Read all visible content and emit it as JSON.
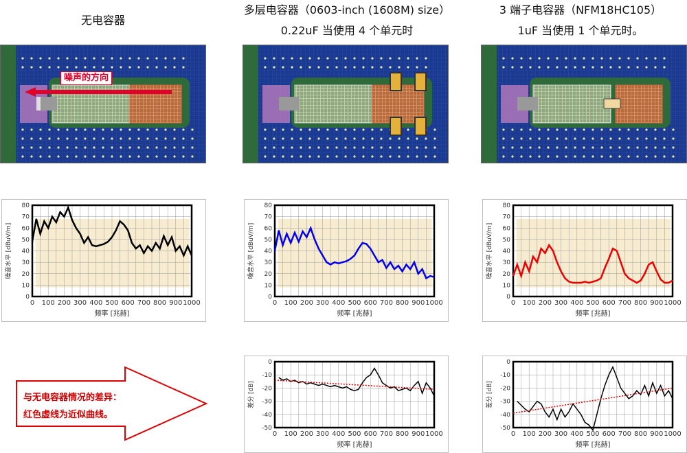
{
  "headings": {
    "col1": "无电容器",
    "col2_line1": "多层电容器（0603-inch (1608M) size）",
    "col2_line2": "0.22uF 当使用 4 个单元时",
    "col3_line1": "3 端子电容器（NFM18HC105）",
    "col3_line2": "1uF 当使用 1 个单元时。"
  },
  "noise_direction_label": "噪声的方向",
  "arrow_text": {
    "line1": "与无电容器情况的差异：",
    "line2": "红色虚线为近似曲线。"
  },
  "colors": {
    "board_blue": "#1b3a8f",
    "board_green": "#2f6b3a",
    "noise_red": "#e0002a",
    "series_black": "#000000",
    "series_blue": "#0000ee",
    "series_red": "#ee0000",
    "envelope_fill": "#f7ecd0",
    "trend_red": "#e00000"
  },
  "chart_data": [
    {
      "type": "line",
      "ylabel": "噪音水平 [dBuV/m]",
      "xlabel": "频率 [兆赫]",
      "xlim": [
        0,
        1000
      ],
      "ylim": [
        0,
        80
      ],
      "xticks": [
        0,
        100,
        200,
        300,
        400,
        500,
        600,
        700,
        800,
        900,
        1000
      ],
      "yticks": [
        0,
        10,
        20,
        30,
        40,
        50,
        60,
        70,
        80
      ],
      "grid": true,
      "series": [
        {
          "color": "#000000",
          "x": [
            0,
            25,
            50,
            75,
            100,
            125,
            150,
            175,
            200,
            225,
            250,
            275,
            300,
            325,
            350,
            375,
            400,
            425,
            450,
            475,
            500,
            525,
            550,
            575,
            600,
            625,
            650,
            675,
            700,
            725,
            750,
            775,
            800,
            825,
            850,
            875,
            900,
            925,
            950,
            975,
            1000
          ],
          "y": [
            48,
            68,
            55,
            66,
            60,
            70,
            65,
            74,
            70,
            78,
            67,
            60,
            55,
            47,
            52,
            45,
            44,
            45,
            46,
            48,
            52,
            58,
            66,
            63,
            58,
            47,
            42,
            45,
            38,
            44,
            40,
            47,
            42,
            53,
            45,
            52,
            40,
            44,
            36,
            44,
            36
          ]
        }
      ]
    },
    {
      "type": "line",
      "ylabel": "噪音水平 [dBuV/m]",
      "xlabel": "频率 [兆赫]",
      "xlim": [
        0,
        1000
      ],
      "ylim": [
        0,
        80
      ],
      "xticks": [
        0,
        100,
        200,
        300,
        400,
        500,
        600,
        700,
        800,
        900,
        1000
      ],
      "yticks": [
        0,
        10,
        20,
        30,
        40,
        50,
        60,
        70,
        80
      ],
      "grid": true,
      "series": [
        {
          "color": "#0000ee",
          "x": [
            0,
            25,
            50,
            75,
            100,
            125,
            150,
            175,
            200,
            225,
            250,
            275,
            300,
            325,
            350,
            375,
            400,
            425,
            450,
            475,
            500,
            525,
            550,
            575,
            600,
            625,
            650,
            675,
            700,
            725,
            750,
            775,
            800,
            825,
            850,
            875,
            900,
            925,
            950,
            975,
            1000
          ],
          "y": [
            40,
            58,
            45,
            55,
            47,
            56,
            48,
            57,
            52,
            60,
            50,
            42,
            36,
            30,
            28,
            30,
            29,
            30,
            31,
            33,
            36,
            42,
            47,
            46,
            42,
            36,
            30,
            32,
            25,
            30,
            24,
            27,
            22,
            28,
            24,
            30,
            20,
            24,
            16,
            18,
            17
          ]
        }
      ]
    },
    {
      "type": "line",
      "ylabel": "噪音水平 [dBuV/m]",
      "xlabel": "频率 [兆赫]",
      "xlim": [
        0,
        1000
      ],
      "ylim": [
        0,
        80
      ],
      "xticks": [
        0,
        100,
        200,
        300,
        400,
        500,
        600,
        700,
        800,
        900,
        1000
      ],
      "yticks": [
        0,
        10,
        20,
        30,
        40,
        50,
        60,
        70,
        80
      ],
      "grid": true,
      "series": [
        {
          "color": "#ee0000",
          "x": [
            0,
            25,
            50,
            75,
            100,
            125,
            150,
            175,
            200,
            225,
            250,
            275,
            300,
            325,
            350,
            375,
            400,
            425,
            450,
            475,
            500,
            525,
            550,
            575,
            600,
            625,
            650,
            675,
            700,
            725,
            750,
            775,
            800,
            825,
            850,
            875,
            900,
            925,
            950,
            975,
            1000
          ],
          "y": [
            18,
            28,
            18,
            30,
            22,
            35,
            30,
            42,
            38,
            45,
            40,
            30,
            22,
            16,
            13,
            12,
            12,
            12,
            13,
            12,
            13,
            14,
            16,
            25,
            33,
            42,
            40,
            30,
            20,
            16,
            14,
            12,
            14,
            20,
            28,
            30,
            22,
            15,
            12,
            12,
            14
          ]
        }
      ]
    },
    {
      "type": "line",
      "ylabel": "差分 [dB]",
      "xlabel": "频率 [兆赫]",
      "xlim": [
        0,
        1000
      ],
      "ylim": [
        -50,
        0
      ],
      "xticks": [
        0,
        100,
        200,
        300,
        400,
        500,
        600,
        700,
        800,
        900,
        1000
      ],
      "yticks": [
        0,
        -10,
        -20,
        -30,
        -40,
        -50
      ],
      "grid": true,
      "series": [
        {
          "color": "#000000",
          "x": [
            25,
            50,
            75,
            100,
            125,
            150,
            175,
            200,
            225,
            250,
            275,
            300,
            325,
            350,
            375,
            400,
            425,
            450,
            475,
            500,
            525,
            550,
            575,
            600,
            625,
            650,
            675,
            700,
            725,
            750,
            775,
            800,
            825,
            850,
            875,
            900,
            925,
            950,
            975,
            1000
          ],
          "y": [
            -12,
            -14,
            -13,
            -15,
            -14,
            -16,
            -15,
            -17,
            -16,
            -17,
            -18,
            -17,
            -18,
            -19,
            -18,
            -19,
            -20,
            -19,
            -21,
            -22,
            -21,
            -16,
            -12,
            -10,
            -5,
            -10,
            -16,
            -18,
            -20,
            -19,
            -22,
            -21,
            -20,
            -22,
            -18,
            -15,
            -24,
            -16,
            -20,
            -26
          ]
        },
        {
          "color": "#e00000",
          "dashed": true,
          "name": "",
          "x": [
            0,
            1000
          ],
          "y": [
            -14,
            -21
          ]
        }
      ]
    },
    {
      "type": "line",
      "ylabel": "差分 [dB]",
      "xlabel": "频率 [兆赫]",
      "xlim": [
        0,
        1000
      ],
      "ylim": [
        -50,
        0
      ],
      "xticks": [
        0,
        100,
        200,
        300,
        400,
        500,
        600,
        700,
        800,
        900,
        1000
      ],
      "yticks": [
        0,
        -10,
        -20,
        -30,
        -40,
        -50
      ],
      "grid": true,
      "series": [
        {
          "color": "#000000",
          "x": [
            25,
            50,
            75,
            100,
            125,
            150,
            175,
            200,
            225,
            250,
            275,
            300,
            325,
            350,
            375,
            400,
            425,
            450,
            475,
            500,
            525,
            550,
            575,
            600,
            625,
            650,
            675,
            700,
            725,
            750,
            775,
            800,
            825,
            850,
            875,
            900,
            925,
            950,
            975,
            1000
          ],
          "y": [
            -30,
            -33,
            -36,
            -38,
            -34,
            -30,
            -32,
            -38,
            -42,
            -36,
            -44,
            -36,
            -42,
            -38,
            -32,
            -36,
            -40,
            -46,
            -48,
            -52,
            -40,
            -28,
            -18,
            -10,
            -4,
            -12,
            -20,
            -24,
            -28,
            -26,
            -22,
            -25,
            -18,
            -26,
            -16,
            -24,
            -18,
            -26,
            -22,
            -28
          ]
        },
        {
          "color": "#e00000",
          "dashed": true,
          "name": "",
          "x": [
            0,
            1000
          ],
          "y": [
            -39,
            -20
          ]
        }
      ]
    }
  ]
}
